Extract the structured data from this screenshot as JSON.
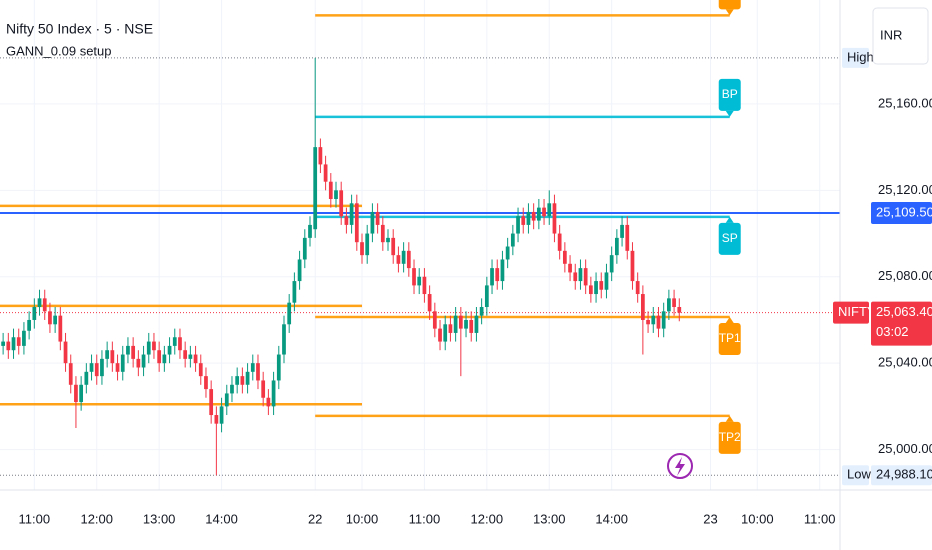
{
  "chart_data": {
    "type": "candlestick",
    "title": "Nifty 50 Index · 5 · NSE",
    "subtitle": "GANN_0.09 setup",
    "currency": "INR",
    "up_color": "#089981",
    "down_color": "#f23645",
    "grid": true,
    "xlim": [
      -0.6,
      160.9
    ],
    "xticks": [
      {
        "value": 6,
        "label": "11:00"
      },
      {
        "value": 18,
        "label": "12:00"
      },
      {
        "value": 30,
        "label": "13:00"
      },
      {
        "value": 42,
        "label": "14:00"
      },
      {
        "value": 60,
        "label": "22"
      },
      {
        "value": 69,
        "label": "10:00"
      },
      {
        "value": 81,
        "label": "11:00"
      },
      {
        "value": 93,
        "label": "12:00"
      },
      {
        "value": 105,
        "label": "13:00"
      },
      {
        "value": 117,
        "label": "14:00"
      },
      {
        "value": 136,
        "label": "23"
      },
      {
        "value": 145,
        "label": "10:00"
      },
      {
        "value": 157,
        "label": "11:00"
      }
    ],
    "ylim": [
      24981.3,
      25208.1
    ],
    "yticks": [
      {
        "value": 25000,
        "label": "25,000.00"
      },
      {
        "value": 25040,
        "label": "25,040.00"
      },
      {
        "value": 25080,
        "label": "25,080.00"
      },
      {
        "value": 25120,
        "label": "25,120.00"
      },
      {
        "value": 25160,
        "label": "25,160.00"
      }
    ],
    "open": [
      25048,
      25050,
      25046,
      25052,
      25048,
      25055,
      25060,
      25066,
      25070,
      25064,
      25058,
      25062,
      25050,
      25040,
      25030,
      25022,
      25030,
      25036,
      25040,
      25034,
      25042,
      25046,
      25040,
      25036,
      25044,
      25048,
      25042,
      25038,
      25044,
      25050,
      25046,
      25040,
      25044,
      25048,
      25052,
      25046,
      25042,
      25044,
      25040,
      25034,
      25028,
      25016,
      25012,
      25020,
      25026,
      25030,
      25034,
      25030,
      25036,
      25040,
      25032,
      25024,
      25020,
      25032,
      25044,
      25058,
      25068,
      25078,
      25088,
      25098,
      25102,
      25140,
      25132,
      25124,
      25116,
      25120,
      25108,
      25104,
      25114,
      25096,
      25090,
      25100,
      25110,
      25104,
      25096,
      25098,
      25090,
      25086,
      25092,
      25084,
      25076,
      25080,
      25072,
      25064,
      25056,
      25050,
      25058,
      25054,
      25062,
      25056,
      25060,
      25054,
      25062,
      25066,
      25076,
      25084,
      25078,
      25088,
      25094,
      25100,
      25108,
      25104,
      25110,
      25106,
      25112,
      25108,
      25114,
      25100,
      25092,
      25086,
      25082,
      25078,
      25084,
      25076,
      25072,
      25078,
      25074,
      25082,
      25090,
      25098,
      25104,
      25092,
      25078,
      25072,
      25060,
      25058,
      25062,
      25056,
      25064,
      25070,
      25066
    ],
    "high": [
      25054,
      25054,
      25056,
      25056,
      25059,
      25064,
      25070,
      25074,
      25074,
      25068,
      25066,
      25066,
      25054,
      25044,
      25034,
      25034,
      25040,
      25044,
      25044,
      25046,
      25050,
      25050,
      25044,
      25048,
      25052,
      25052,
      25046,
      25048,
      25054,
      25054,
      25050,
      25048,
      25052,
      25056,
      25056,
      25050,
      25048,
      25048,
      25044,
      25038,
      25032,
      25020,
      25024,
      25030,
      25034,
      25038,
      25038,
      25040,
      25044,
      25044,
      25036,
      25028,
      25036,
      25048,
      25062,
      25072,
      25082,
      25092,
      25102,
      25108,
      25181.3,
      25144,
      25136,
      25128,
      25124,
      25124,
      25112,
      25118,
      25118,
      25100,
      25104,
      25114,
      25114,
      25108,
      25102,
      25102,
      25094,
      25096,
      25096,
      25088,
      25084,
      25084,
      25076,
      25068,
      25060,
      25062,
      25062,
      25066,
      25066,
      25064,
      25064,
      25066,
      25070,
      25080,
      25088,
      25088,
      25092,
      25098,
      25104,
      25112,
      25112,
      25114,
      25114,
      25116,
      25116,
      25120,
      25118,
      25104,
      25096,
      25090,
      25086,
      25088,
      25088,
      25080,
      25082,
      25082,
      25086,
      25094,
      25102,
      25108,
      25108,
      25096,
      25082,
      25076,
      25064,
      25066,
      25066,
      25068,
      25074,
      25074,
      25070
    ],
    "low": [
      25044,
      25042,
      25042,
      25044,
      25044,
      25051,
      25056,
      25062,
      25060,
      25054,
      25054,
      25046,
      25036,
      25026,
      25010,
      25018,
      25026,
      25032,
      25030,
      25030,
      25038,
      25036,
      25032,
      25032,
      25040,
      25038,
      25034,
      25034,
      25040,
      25042,
      25036,
      25036,
      25040,
      25044,
      25042,
      25038,
      25038,
      25036,
      25030,
      25024,
      25012,
      24988.1,
      25008,
      25016,
      25022,
      25026,
      25026,
      25026,
      25032,
      25028,
      25020,
      25016,
      25016,
      25028,
      25040,
      25054,
      25064,
      25074,
      25084,
      25094,
      25098,
      25128,
      25120,
      25112,
      25112,
      25104,
      25100,
      25100,
      25092,
      25086,
      25086,
      25096,
      25100,
      25092,
      25092,
      25086,
      25082,
      25082,
      25080,
      25072,
      25072,
      25068,
      25060,
      25052,
      25046,
      25046,
      25050,
      25050,
      25034,
      25052,
      25050,
      25050,
      25058,
      25062,
      25072,
      25074,
      25074,
      25084,
      25090,
      25096,
      25100,
      25100,
      25102,
      25102,
      25104,
      25104,
      25096,
      25088,
      25082,
      25078,
      25074,
      25074,
      25072,
      25068,
      25068,
      25070,
      25070,
      25078,
      25086,
      25094,
      25088,
      25074,
      25068,
      25044,
      25054,
      25054,
      25052,
      25052,
      25060,
      25062,
      25059.4
    ],
    "close": [
      25050,
      25046,
      25052,
      25048,
      25055,
      25060,
      25066,
      25070,
      25064,
      25058,
      25062,
      25050,
      25040,
      25030,
      25022,
      25030,
      25036,
      25040,
      25034,
      25042,
      25046,
      25040,
      25036,
      25044,
      25048,
      25042,
      25038,
      25044,
      25050,
      25046,
      25040,
      25044,
      25048,
      25052,
      25046,
      25042,
      25044,
      25040,
      25034,
      25028,
      25016,
      25012,
      25020,
      25026,
      25030,
      25034,
      25030,
      25036,
      25040,
      25032,
      25024,
      25020,
      25032,
      25044,
      25058,
      25068,
      25078,
      25088,
      25098,
      25104,
      25140,
      25132,
      25124,
      25116,
      25120,
      25108,
      25104,
      25114,
      25096,
      25090,
      25100,
      25110,
      25104,
      25096,
      25098,
      25090,
      25086,
      25092,
      25084,
      25076,
      25080,
      25072,
      25064,
      25056,
      25050,
      25058,
      25054,
      25062,
      25056,
      25060,
      25054,
      25062,
      25066,
      25076,
      25084,
      25078,
      25088,
      25094,
      25100,
      25108,
      25104,
      25110,
      25106,
      25112,
      25108,
      25114,
      25100,
      25092,
      25086,
      25082,
      25078,
      25084,
      25076,
      25072,
      25078,
      25074,
      25082,
      25090,
      25098,
      25104,
      25092,
      25078,
      25072,
      25060,
      25058,
      25062,
      25056,
      25064,
      25070,
      25066,
      25063.4
    ],
    "high_marker": {
      "label": "High",
      "value": 25181.3
    },
    "low_marker": {
      "label": "Low",
      "value": 24988.1,
      "value_label": "24,988.10"
    },
    "last_price": {
      "name": "NIFTY",
      "value": 25063.4,
      "label": "25,063.40",
      "countdown": "03:02",
      "color": "#f23645"
    },
    "hline": {
      "value": 25109.5,
      "label": "25,109.50",
      "color": "#2962ff"
    },
    "levels": [
      {
        "value": 25201,
        "start": 60,
        "end": 139.7,
        "color": "#ff9800",
        "tag": "above"
      },
      {
        "label": "BP",
        "value": 25154,
        "start": 60,
        "end": 139.7,
        "color": "#00bcd4",
        "tag": "above"
      },
      {
        "label": "SP",
        "value": 25107.7,
        "start": 60,
        "end": 139.7,
        "color": "#00bcd4",
        "tag": "below"
      },
      {
        "label": "TP1",
        "value": 25061.4,
        "start": 60,
        "end": 139.7,
        "color": "#ff9800",
        "tag": "below"
      },
      {
        "label": "TP2",
        "value": 25015.6,
        "start": 60,
        "end": 139.7,
        "color": "#ff9800",
        "tag": "below"
      },
      {
        "value": 25112.8,
        "start": -0.6,
        "end": 69,
        "color": "#ff9800"
      },
      {
        "value": 25066.5,
        "start": -0.6,
        "end": 69,
        "color": "#ff9800"
      },
      {
        "value": 25021,
        "start": -0.6,
        "end": 69,
        "color": "#ff9800"
      }
    ]
  }
}
